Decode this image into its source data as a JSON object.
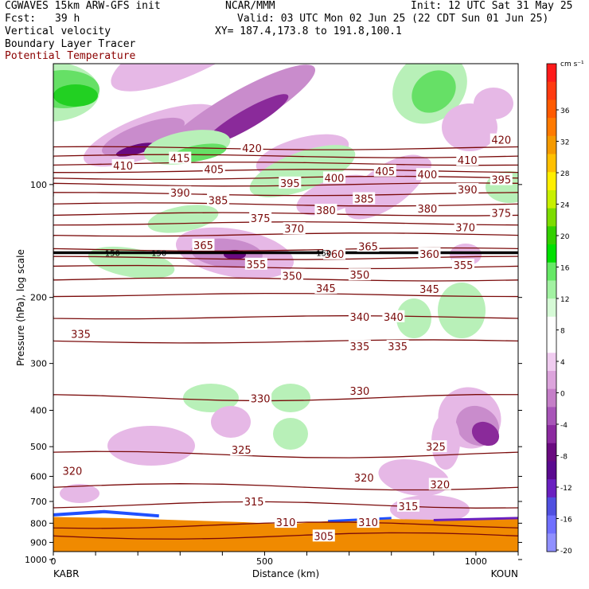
{
  "header": {
    "model": "CGWAVES 15km ARW-GFS init",
    "org": "NCAR/MMM",
    "init": "Init: 12 UTC Sat 31 May 25",
    "fcst_label": "Fcst:",
    "fcst_value": "39 h",
    "valid": "Valid: 03 UTC Mon 02 Jun 25 (22 CDT Sun 01 Jun 25)",
    "line1": "Vertical velocity",
    "xy": "XY= 187.4,173.8 to 191.8,100.1",
    "line2": "Boundary Layer Tracer",
    "line3": "Potential Temperature"
  },
  "colors": {
    "theta": "#7a0a0a",
    "terrain": "#f08a00"
  },
  "chart_data": {
    "type": "heatmap",
    "xlabel": "Distance (km)",
    "ylabel": "Pressure (hPa), log scale",
    "xlim": [
      0,
      1100
    ],
    "ylim": [
      1000,
      50
    ],
    "log_y": true,
    "x_ticks": [
      0,
      500,
      1000
    ],
    "y_ticks": [
      100,
      200,
      300,
      400,
      500,
      600,
      700,
      800,
      900,
      1000
    ],
    "endpoints": {
      "left": "KABR",
      "right": "KOUN"
    },
    "colorbar": {
      "unit": "cm s⁻¹",
      "ticks": [
        "36",
        "32",
        "28",
        "24",
        "20",
        "16",
        "12",
        "8",
        "4",
        "0",
        "-4",
        "-8",
        "-12",
        "-16",
        "-20"
      ],
      "colors": [
        "#ff1a1a",
        "#ff3a10",
        "#ff5a00",
        "#ff7a00",
        "#f59a00",
        "#ffc000",
        "#ffef00",
        "#c8f000",
        "#7ddc00",
        "#33d000",
        "#00e000",
        "#66e866",
        "#a2f2a2",
        "#d6fad6",
        "#ffffff",
        "#ffffff",
        "#f0ccf0",
        "#dca4dc",
        "#c57ec8",
        "#a855b8",
        "#8c2aa0",
        "#6a0a80",
        "#5a0a90",
        "#6a20c0",
        "#5050e0",
        "#7070ff",
        "#9090ff"
      ]
    },
    "theta_levels": [
      {
        "value": "305",
        "p": 865
      },
      {
        "value": "310",
        "p": 810
      },
      {
        "value": "315",
        "p": 715
      },
      {
        "value": "320",
        "p": 640
      },
      {
        "value": "325",
        "p": 525
      },
      {
        "value": "330",
        "p": 370
      },
      {
        "value": "335",
        "p": 262
      },
      {
        "value": "340",
        "p": 226
      },
      {
        "value": "345",
        "p": 197
      },
      {
        "value": "350",
        "p": 179
      },
      {
        "value": "355",
        "p": 166
      },
      {
        "value": "360",
        "p": 157
      },
      {
        "value": "365",
        "p": 149
      },
      {
        "value": "370",
        "p": 136
      },
      {
        "value": "375",
        "p": 127
      },
      {
        "value": "380",
        "p": 120
      },
      {
        "value": "385",
        "p": 113
      },
      {
        "value": "390",
        "p": 106
      },
      {
        "value": "395",
        "p": 100
      },
      {
        "value": "400",
        "p": 96
      },
      {
        "value": "405",
        "p": 92
      },
      {
        "value": "410",
        "p": 88
      },
      {
        "value": "415",
        "p": 84
      },
      {
        "value": "420",
        "p": 80
      }
    ],
    "boundary_layer_tracer": {
      "value": "150",
      "p": 152
    },
    "theta_labels": [
      {
        "text": "420",
        "x": 470,
        "p": 80
      },
      {
        "text": "420",
        "x": 1060,
        "p": 76
      },
      {
        "text": "410",
        "x": 165,
        "p": 89
      },
      {
        "text": "415",
        "x": 300,
        "p": 85
      },
      {
        "text": "405",
        "x": 380,
        "p": 91
      },
      {
        "text": "395",
        "x": 560,
        "p": 99
      },
      {
        "text": "400",
        "x": 665,
        "p": 96
      },
      {
        "text": "405",
        "x": 785,
        "p": 92
      },
      {
        "text": "400",
        "x": 885,
        "p": 94
      },
      {
        "text": "410",
        "x": 980,
        "p": 86
      },
      {
        "text": "395",
        "x": 1060,
        "p": 97
      },
      {
        "text": "390",
        "x": 300,
        "p": 105
      },
      {
        "text": "385",
        "x": 390,
        "p": 110
      },
      {
        "text": "385",
        "x": 735,
        "p": 109
      },
      {
        "text": "380",
        "x": 645,
        "p": 117
      },
      {
        "text": "380",
        "x": 885,
        "p": 116
      },
      {
        "text": "390",
        "x": 980,
        "p": 103
      },
      {
        "text": "375",
        "x": 490,
        "p": 123
      },
      {
        "text": "370",
        "x": 570,
        "p": 131
      },
      {
        "text": "370",
        "x": 975,
        "p": 130
      },
      {
        "text": "375",
        "x": 1060,
        "p": 119
      },
      {
        "text": "365",
        "x": 355,
        "p": 145
      },
      {
        "text": "365",
        "x": 745,
        "p": 146
      },
      {
        "text": "360",
        "x": 665,
        "p": 153
      },
      {
        "text": "360",
        "x": 890,
        "p": 153
      },
      {
        "text": "355",
        "x": 480,
        "p": 163
      },
      {
        "text": "355",
        "x": 970,
        "p": 164
      },
      {
        "text": "350",
        "x": 565,
        "p": 175
      },
      {
        "text": "350",
        "x": 725,
        "p": 174
      },
      {
        "text": "345",
        "x": 645,
        "p": 189
      },
      {
        "text": "345",
        "x": 890,
        "p": 190
      },
      {
        "text": "340",
        "x": 725,
        "p": 225
      },
      {
        "text": "340",
        "x": 805,
        "p": 225
      },
      {
        "text": "335",
        "x": 65,
        "p": 250
      },
      {
        "text": "335",
        "x": 725,
        "p": 270
      },
      {
        "text": "335",
        "x": 815,
        "p": 270
      },
      {
        "text": "330",
        "x": 490,
        "p": 372
      },
      {
        "text": "330",
        "x": 725,
        "p": 355
      },
      {
        "text": "325",
        "x": 445,
        "p": 510
      },
      {
        "text": "325",
        "x": 905,
        "p": 500
      },
      {
        "text": "320",
        "x": 45,
        "p": 580
      },
      {
        "text": "320",
        "x": 735,
        "p": 605
      },
      {
        "text": "320",
        "x": 915,
        "p": 630
      },
      {
        "text": "315",
        "x": 475,
        "p": 700
      },
      {
        "text": "315",
        "x": 840,
        "p": 720
      },
      {
        "text": "310",
        "x": 550,
        "p": 795
      },
      {
        "text": "310",
        "x": 745,
        "p": 795
      },
      {
        "text": "305",
        "x": 640,
        "p": 865
      }
    ]
  }
}
